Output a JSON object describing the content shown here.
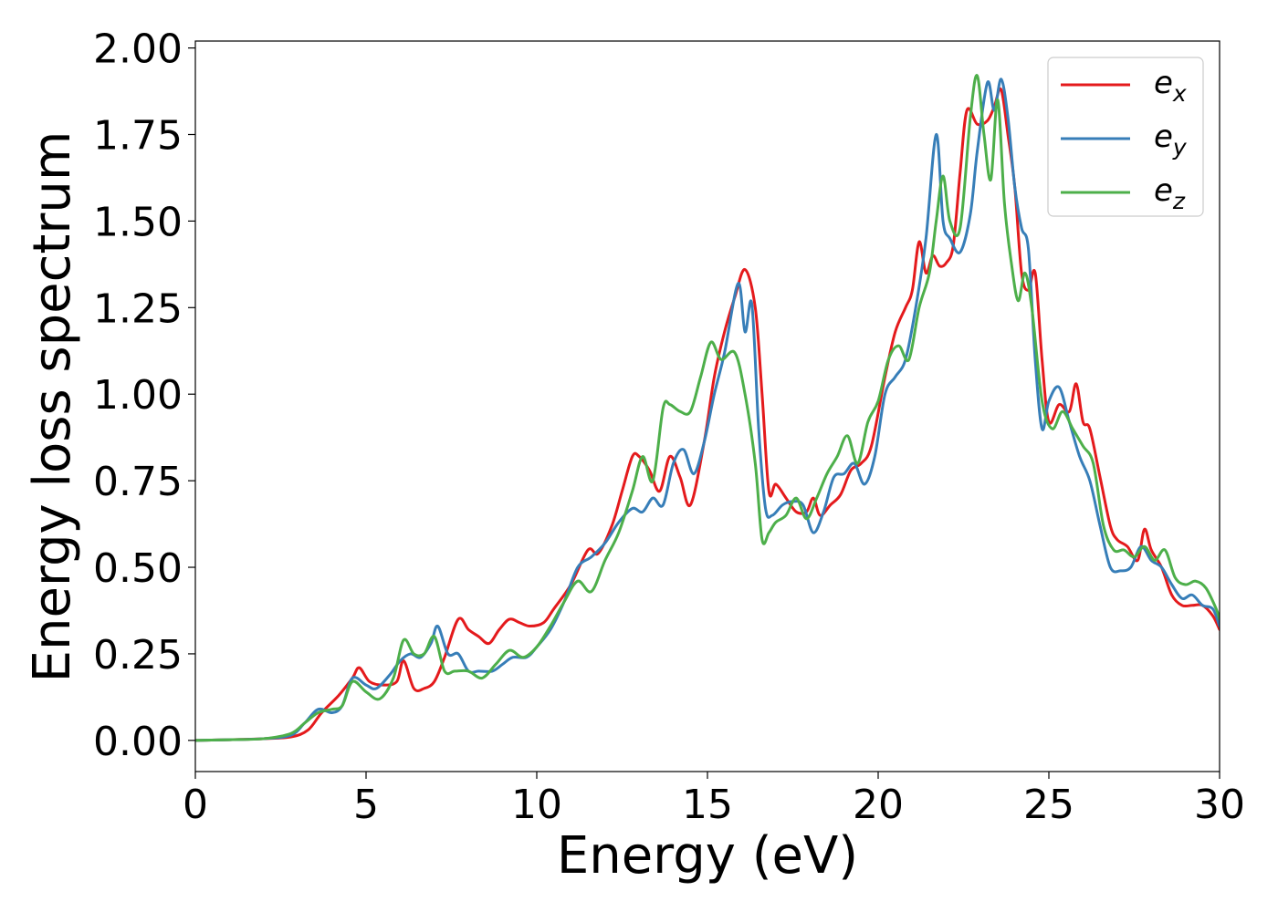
{
  "chart_data": {
    "type": "line",
    "xlabel": "Energy (eV)",
    "ylabel": "Energy loss spectrum",
    "xlim": [
      0,
      30
    ],
    "ylim": [
      -0.09,
      2.02
    ],
    "xticks": [
      "0",
      "5",
      "10",
      "15",
      "20",
      "25",
      "30"
    ],
    "yticks": [
      "0.00",
      "0.25",
      "0.50",
      "0.75",
      "1.00",
      "1.25",
      "1.50",
      "1.75",
      "2.00"
    ],
    "grid": false,
    "legend_position": "top-right",
    "series": [
      {
        "name": "e_x",
        "legend_base": "e",
        "legend_sub": "x",
        "color": "#e41a1c",
        "x": [
          0,
          1,
          2,
          2.8,
          3.3,
          3.7,
          4.2,
          4.6,
          4.8,
          5.1,
          5.5,
          5.9,
          6.1,
          6.4,
          6.7,
          7.0,
          7.3,
          7.7,
          8.0,
          8.3,
          8.6,
          8.9,
          9.2,
          9.5,
          9.8,
          10.2,
          10.5,
          11.0,
          11.5,
          11.8,
          12.2,
          12.5,
          12.8,
          13.0,
          13.3,
          13.6,
          13.9,
          14.2,
          14.5,
          14.9,
          15.2,
          15.5,
          15.8,
          16.1,
          16.4,
          16.6,
          16.8,
          17.0,
          17.3,
          17.6,
          17.9,
          18.1,
          18.3,
          18.6,
          18.9,
          19.2,
          19.5,
          19.8,
          20.2,
          20.5,
          20.8,
          21.0,
          21.2,
          21.4,
          21.6,
          21.8,
          22.0,
          22.2,
          22.4,
          22.6,
          22.9,
          23.2,
          23.4,
          23.6,
          23.8,
          24.0,
          24.2,
          24.4,
          24.6,
          24.8,
          25.0,
          25.3,
          25.6,
          25.8,
          26.0,
          26.2,
          26.5,
          26.8,
          27.0,
          27.3,
          27.6,
          27.8,
          28.0,
          28.3,
          28.6,
          28.9,
          29.2,
          29.5,
          29.8,
          30.0
        ],
        "y": [
          0.0,
          0.002,
          0.005,
          0.01,
          0.03,
          0.08,
          0.13,
          0.18,
          0.21,
          0.17,
          0.16,
          0.17,
          0.23,
          0.15,
          0.15,
          0.17,
          0.24,
          0.35,
          0.32,
          0.3,
          0.28,
          0.32,
          0.35,
          0.34,
          0.33,
          0.34,
          0.38,
          0.45,
          0.55,
          0.54,
          0.62,
          0.72,
          0.82,
          0.82,
          0.78,
          0.72,
          0.82,
          0.76,
          0.68,
          0.86,
          1.05,
          1.18,
          1.28,
          1.36,
          1.25,
          1.0,
          0.72,
          0.74,
          0.7,
          0.66,
          0.66,
          0.7,
          0.65,
          0.68,
          0.71,
          0.78,
          0.8,
          0.85,
          1.05,
          1.18,
          1.25,
          1.3,
          1.44,
          1.35,
          1.4,
          1.37,
          1.38,
          1.43,
          1.64,
          1.82,
          1.78,
          1.79,
          1.83,
          1.88,
          1.75,
          1.6,
          1.35,
          1.3,
          1.35,
          1.1,
          0.92,
          0.97,
          0.95,
          1.03,
          0.92,
          0.9,
          0.76,
          0.62,
          0.58,
          0.56,
          0.52,
          0.61,
          0.55,
          0.5,
          0.42,
          0.39,
          0.39,
          0.39,
          0.36,
          0.32
        ]
      },
      {
        "name": "e_y",
        "legend_base": "e",
        "legend_sub": "y",
        "color": "#377eb8",
        "x": [
          0,
          1,
          2,
          2.8,
          3.2,
          3.6,
          4.0,
          4.3,
          4.6,
          5.0,
          5.3,
          5.7,
          6.0,
          6.3,
          6.6,
          6.9,
          7.1,
          7.4,
          7.7,
          8.0,
          8.3,
          8.7,
          9.0,
          9.3,
          9.7,
          10.0,
          10.4,
          10.8,
          11.2,
          11.6,
          12.0,
          12.4,
          12.8,
          13.1,
          13.4,
          13.7,
          14.0,
          14.3,
          14.6,
          14.9,
          15.2,
          15.5,
          15.9,
          16.1,
          16.3,
          16.5,
          16.7,
          16.9,
          17.2,
          17.5,
          17.8,
          18.1,
          18.4,
          18.7,
          19.0,
          19.3,
          19.6,
          19.9,
          20.2,
          20.5,
          20.8,
          21.1,
          21.4,
          21.7,
          21.9,
          22.1,
          22.4,
          22.7,
          22.9,
          23.2,
          23.4,
          23.6,
          23.8,
          24.0,
          24.2,
          24.4,
          24.6,
          24.8,
          25.0,
          25.3,
          25.6,
          25.9,
          26.2,
          26.5,
          26.8,
          27.1,
          27.4,
          27.7,
          28.0,
          28.3,
          28.6,
          28.9,
          29.2,
          29.5,
          29.8,
          30.0
        ],
        "y": [
          0.0,
          0.002,
          0.005,
          0.015,
          0.05,
          0.09,
          0.08,
          0.1,
          0.18,
          0.16,
          0.15,
          0.19,
          0.23,
          0.25,
          0.24,
          0.28,
          0.33,
          0.25,
          0.25,
          0.2,
          0.2,
          0.2,
          0.22,
          0.24,
          0.24,
          0.27,
          0.32,
          0.4,
          0.5,
          0.53,
          0.57,
          0.63,
          0.67,
          0.66,
          0.7,
          0.68,
          0.8,
          0.84,
          0.77,
          0.86,
          1.0,
          1.12,
          1.32,
          1.18,
          1.26,
          0.9,
          0.67,
          0.65,
          0.68,
          0.69,
          0.68,
          0.6,
          0.66,
          0.76,
          0.77,
          0.8,
          0.74,
          0.82,
          1.0,
          1.05,
          1.1,
          1.25,
          1.45,
          1.75,
          1.5,
          1.45,
          1.41,
          1.52,
          1.7,
          1.9,
          1.82,
          1.91,
          1.8,
          1.6,
          1.48,
          1.42,
          1.1,
          0.9,
          0.98,
          1.02,
          0.92,
          0.82,
          0.75,
          0.62,
          0.5,
          0.49,
          0.5,
          0.56,
          0.52,
          0.5,
          0.45,
          0.41,
          0.42,
          0.39,
          0.38,
          0.33
        ]
      },
      {
        "name": "e_z",
        "legend_base": "e",
        "legend_sub": "z",
        "color": "#4daf4a",
        "x": [
          0,
          1,
          2,
          2.8,
          3.2,
          3.6,
          4.0,
          4.3,
          4.6,
          5.0,
          5.4,
          5.8,
          6.1,
          6.4,
          6.7,
          7.0,
          7.3,
          7.6,
          8.0,
          8.4,
          8.8,
          9.2,
          9.6,
          10.0,
          10.4,
          10.8,
          11.2,
          11.6,
          12.0,
          12.4,
          12.8,
          13.1,
          13.4,
          13.7,
          13.9,
          14.2,
          14.5,
          14.8,
          15.1,
          15.4,
          15.8,
          16.1,
          16.4,
          16.6,
          16.8,
          17.0,
          17.3,
          17.6,
          17.9,
          18.2,
          18.5,
          18.8,
          19.1,
          19.4,
          19.7,
          20.0,
          20.3,
          20.6,
          20.9,
          21.2,
          21.5,
          21.7,
          21.9,
          22.1,
          22.4,
          22.7,
          22.9,
          23.1,
          23.3,
          23.5,
          23.7,
          23.9,
          24.1,
          24.3,
          24.5,
          24.8,
          25.1,
          25.4,
          25.7,
          26.0,
          26.3,
          26.6,
          26.9,
          27.2,
          27.5,
          27.8,
          28.1,
          28.4,
          28.7,
          29.0,
          29.3,
          29.6,
          29.9,
          30.0
        ],
        "y": [
          0.0,
          0.002,
          0.005,
          0.02,
          0.05,
          0.08,
          0.09,
          0.1,
          0.17,
          0.14,
          0.12,
          0.18,
          0.29,
          0.25,
          0.25,
          0.3,
          0.2,
          0.2,
          0.2,
          0.18,
          0.22,
          0.26,
          0.24,
          0.27,
          0.33,
          0.4,
          0.46,
          0.43,
          0.52,
          0.6,
          0.72,
          0.82,
          0.75,
          0.96,
          0.97,
          0.95,
          0.95,
          1.05,
          1.15,
          1.1,
          1.12,
          1.0,
          0.8,
          0.58,
          0.6,
          0.63,
          0.65,
          0.7,
          0.64,
          0.7,
          0.77,
          0.82,
          0.88,
          0.8,
          0.92,
          0.98,
          1.1,
          1.14,
          1.1,
          1.25,
          1.35,
          1.5,
          1.63,
          1.5,
          1.48,
          1.8,
          1.92,
          1.75,
          1.62,
          1.85,
          1.55,
          1.38,
          1.27,
          1.35,
          1.25,
          0.98,
          0.9,
          0.95,
          0.9,
          0.85,
          0.8,
          0.62,
          0.55,
          0.55,
          0.53,
          0.56,
          0.52,
          0.55,
          0.47,
          0.45,
          0.46,
          0.44,
          0.38,
          0.35
        ]
      }
    ]
  }
}
